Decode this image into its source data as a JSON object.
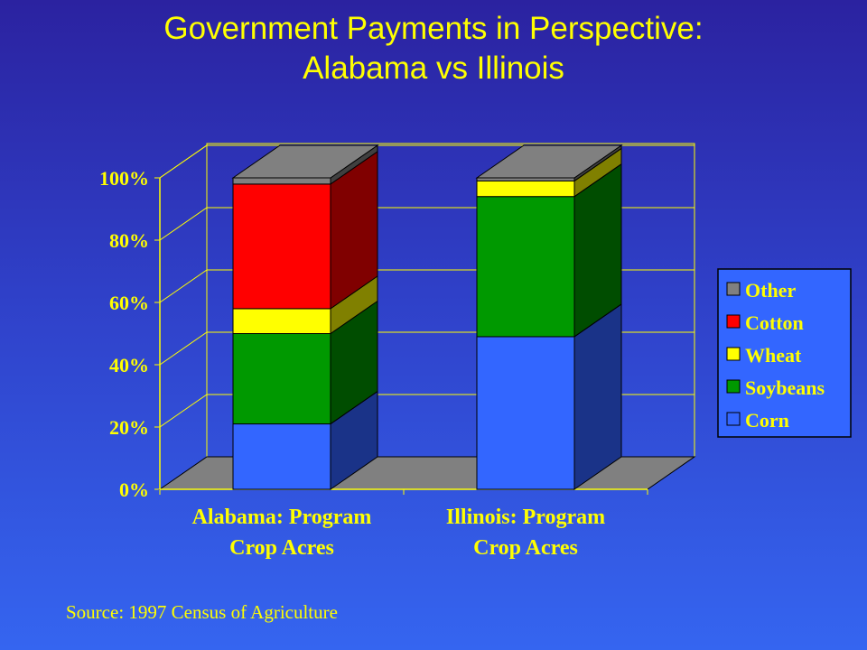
{
  "slide": {
    "title_line1": "Government Payments in Perspective:",
    "title_line2": "Alabama vs Illinois",
    "source": "Source:  1997 Census of Agriculture"
  },
  "chart_data": {
    "type": "bar",
    "stacked": true,
    "three_d": true,
    "categories": [
      "Alabama: Program Crop Acres",
      "Illinois: Program Crop Acres"
    ],
    "category_lines": [
      [
        "Alabama: Program",
        "Crop Acres"
      ],
      [
        "Illinois: Program",
        "Crop Acres"
      ]
    ],
    "series": [
      {
        "name": "Corn",
        "values": [
          21,
          49
        ],
        "color": "#3366ff",
        "side": "#1a3388"
      },
      {
        "name": "Soybeans",
        "values": [
          29,
          45
        ],
        "color": "#009900",
        "side": "#004d00"
      },
      {
        "name": "Wheat",
        "values": [
          8,
          5
        ],
        "color": "#ffff00",
        "side": "#808000"
      },
      {
        "name": "Cotton",
        "values": [
          40,
          0
        ],
        "color": "#ff0000",
        "side": "#800000"
      },
      {
        "name": "Other",
        "values": [
          2,
          1
        ],
        "color": "#808080",
        "side": "#404040"
      }
    ],
    "legend_order": [
      "Other",
      "Cotton",
      "Wheat",
      "Soybeans",
      "Corn"
    ],
    "legend_placement": "right",
    "ylim": [
      0,
      100
    ],
    "yticks": [
      0,
      20,
      40,
      60,
      80,
      100
    ],
    "ytick_labels": [
      "0%",
      "20%",
      "40%",
      "60%",
      "80%",
      "100%"
    ],
    "grid": true,
    "colors": {
      "text": "#ffff00",
      "gridline": "#ffff00",
      "floor": "#808080",
      "legend_bg": "#3366ff"
    }
  }
}
